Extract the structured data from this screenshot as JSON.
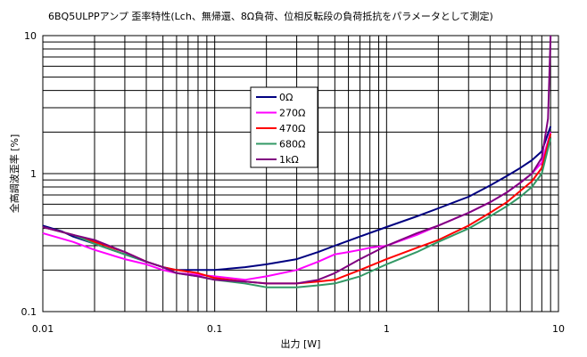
{
  "chart_data": {
    "type": "line",
    "title": "6BQ5ULPPアンプ 歪率特性(Lch、無帰還、8Ω負荷、位相反転段の負荷抵抗をパラメータとして測定)",
    "xlabel": "出力 [W]",
    "ylabel": "全高調波歪率 [%]",
    "x_scale": "log",
    "y_scale": "log",
    "xlim": [
      0.01,
      10
    ],
    "ylim": [
      0.1,
      10
    ],
    "x_ticks": [
      {
        "value": 0.01,
        "label": "0.01"
      },
      {
        "value": 0.1,
        "label": "0.1"
      },
      {
        "value": 1,
        "label": "1"
      },
      {
        "value": 10,
        "label": "10"
      }
    ],
    "y_ticks": [
      {
        "value": 0.1,
        "label": "0.1"
      },
      {
        "value": 1,
        "label": "1"
      },
      {
        "value": 10,
        "label": "10"
      }
    ],
    "grid": true,
    "legend_position": "upper-center",
    "series": [
      {
        "name": "0Ω",
        "color": "#000080",
        "points": [
          [
            0.01,
            0.42
          ],
          [
            0.013,
            0.38
          ],
          [
            0.015,
            0.35
          ],
          [
            0.02,
            0.31
          ],
          [
            0.03,
            0.26
          ],
          [
            0.04,
            0.23
          ],
          [
            0.05,
            0.21
          ],
          [
            0.06,
            0.2
          ],
          [
            0.08,
            0.2
          ],
          [
            0.1,
            0.2
          ],
          [
            0.15,
            0.21
          ],
          [
            0.2,
            0.22
          ],
          [
            0.3,
            0.24
          ],
          [
            0.4,
            0.27
          ],
          [
            0.5,
            0.3
          ],
          [
            0.7,
            0.35
          ],
          [
            1,
            0.41
          ],
          [
            1.5,
            0.49
          ],
          [
            2,
            0.56
          ],
          [
            3,
            0.68
          ],
          [
            4,
            0.82
          ],
          [
            5,
            0.96
          ],
          [
            6,
            1.1
          ],
          [
            7,
            1.25
          ],
          [
            8,
            1.45
          ],
          [
            9,
            2.2
          ]
        ]
      },
      {
        "name": "270Ω",
        "color": "#ff00ff",
        "points": [
          [
            0.01,
            0.37
          ],
          [
            0.015,
            0.32
          ],
          [
            0.02,
            0.28
          ],
          [
            0.03,
            0.24
          ],
          [
            0.04,
            0.22
          ],
          [
            0.05,
            0.2
          ],
          [
            0.06,
            0.19
          ],
          [
            0.08,
            0.185
          ],
          [
            0.1,
            0.18
          ],
          [
            0.15,
            0.17
          ],
          [
            0.2,
            0.18
          ],
          [
            0.3,
            0.2
          ],
          [
            0.4,
            0.23
          ],
          [
            0.5,
            0.26
          ],
          [
            0.6,
            0.27
          ],
          [
            0.7,
            0.28
          ],
          [
            0.8,
            0.29
          ],
          [
            1,
            0.3
          ],
          [
            1.5,
            0.36
          ],
          [
            2,
            0.42
          ],
          [
            3,
            0.52
          ],
          [
            4,
            0.62
          ],
          [
            5,
            0.73
          ],
          [
            6,
            0.86
          ],
          [
            7,
            1.0
          ],
          [
            8,
            1.2
          ],
          [
            9,
            2.0
          ]
        ]
      },
      {
        "name": "470Ω",
        "color": "#ff0000",
        "points": [
          [
            0.01,
            0.41
          ],
          [
            0.015,
            0.36
          ],
          [
            0.02,
            0.32
          ],
          [
            0.03,
            0.27
          ],
          [
            0.04,
            0.23
          ],
          [
            0.05,
            0.21
          ],
          [
            0.06,
            0.2
          ],
          [
            0.08,
            0.19
          ],
          [
            0.1,
            0.175
          ],
          [
            0.15,
            0.165
          ],
          [
            0.2,
            0.16
          ],
          [
            0.3,
            0.16
          ],
          [
            0.4,
            0.165
          ],
          [
            0.5,
            0.17
          ],
          [
            0.7,
            0.2
          ],
          [
            1,
            0.24
          ],
          [
            1.5,
            0.29
          ],
          [
            2,
            0.33
          ],
          [
            3,
            0.42
          ],
          [
            4,
            0.52
          ],
          [
            5,
            0.62
          ],
          [
            6,
            0.75
          ],
          [
            7,
            0.88
          ],
          [
            8,
            1.1
          ],
          [
            9,
            1.95
          ]
        ]
      },
      {
        "name": "680Ω",
        "color": "#339966",
        "points": [
          [
            0.01,
            0.41
          ],
          [
            0.015,
            0.36
          ],
          [
            0.02,
            0.31
          ],
          [
            0.03,
            0.26
          ],
          [
            0.04,
            0.23
          ],
          [
            0.05,
            0.21
          ],
          [
            0.06,
            0.19
          ],
          [
            0.08,
            0.18
          ],
          [
            0.1,
            0.17
          ],
          [
            0.15,
            0.16
          ],
          [
            0.2,
            0.15
          ],
          [
            0.3,
            0.15
          ],
          [
            0.4,
            0.155
          ],
          [
            0.5,
            0.16
          ],
          [
            0.7,
            0.18
          ],
          [
            1,
            0.22
          ],
          [
            1.5,
            0.27
          ],
          [
            2,
            0.32
          ],
          [
            3,
            0.4
          ],
          [
            4,
            0.49
          ],
          [
            5,
            0.58
          ],
          [
            6,
            0.68
          ],
          [
            7,
            0.8
          ],
          [
            8,
            1.0
          ],
          [
            9,
            1.8
          ]
        ]
      },
      {
        "name": "1kΩ",
        "color": "#800080",
        "points": [
          [
            0.01,
            0.41
          ],
          [
            0.015,
            0.36
          ],
          [
            0.02,
            0.33
          ],
          [
            0.03,
            0.27
          ],
          [
            0.04,
            0.23
          ],
          [
            0.05,
            0.21
          ],
          [
            0.06,
            0.19
          ],
          [
            0.08,
            0.18
          ],
          [
            0.1,
            0.17
          ],
          [
            0.15,
            0.165
          ],
          [
            0.2,
            0.16
          ],
          [
            0.3,
            0.16
          ],
          [
            0.4,
            0.17
          ],
          [
            0.5,
            0.19
          ],
          [
            0.7,
            0.24
          ],
          [
            1,
            0.3
          ],
          [
            1.5,
            0.37
          ],
          [
            2,
            0.42
          ],
          [
            3,
            0.52
          ],
          [
            4,
            0.62
          ],
          [
            5,
            0.73
          ],
          [
            6,
            0.86
          ],
          [
            7,
            1.0
          ],
          [
            8,
            1.3
          ],
          [
            8.7,
            2.5
          ],
          [
            9,
            10
          ]
        ]
      }
    ]
  }
}
